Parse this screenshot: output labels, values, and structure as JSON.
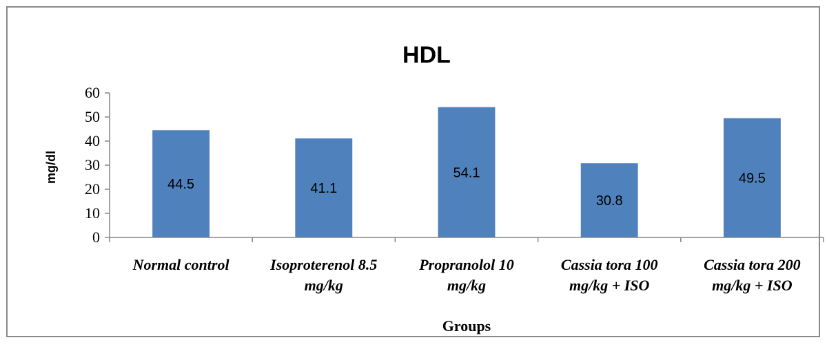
{
  "chart_data": {
    "type": "bar",
    "title": "HDL",
    "xlabel": "Groups",
    "ylabel": "mg/dl",
    "ylim": [
      0,
      60
    ],
    "yticks": [
      "0",
      "10",
      "20",
      "30",
      "40",
      "50",
      "60"
    ],
    "categories": [
      [
        "Normal control"
      ],
      [
        "Isoproterenol 8.5",
        "mg/kg"
      ],
      [
        "Propranolol 10",
        "mg/kg"
      ],
      [
        "Cassia tora 100",
        "mg/kg + ISO"
      ],
      [
        "Cassia tora 200",
        "mg/kg + ISO"
      ]
    ],
    "values": [
      44.5,
      41.1,
      54.1,
      30.8,
      49.5
    ],
    "data_labels": [
      "44.5",
      "41.1",
      "54.1",
      "30.8",
      "49.5"
    ],
    "bar_color": "#4f81bd",
    "grid": false,
    "legend": "none"
  }
}
